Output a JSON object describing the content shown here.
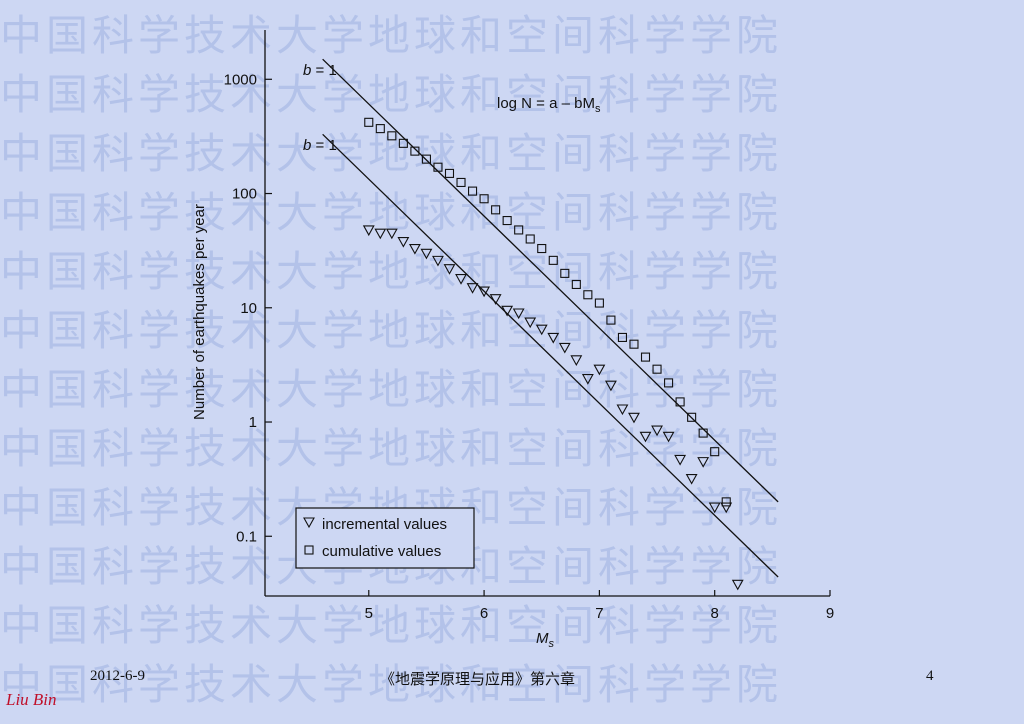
{
  "watermark": {
    "text": "中国科学技术大学地球和空间科学学院"
  },
  "chart_data": {
    "type": "scatter",
    "xlabel": "M",
    "xlabel_sub": "s",
    "ylabel": "Number of earthquakes per year",
    "xlim": [
      4.1,
      9.0
    ],
    "ylim": [
      0.03,
      2700
    ],
    "yscale": "log",
    "x_ticks": [
      5,
      6,
      7,
      8,
      9
    ],
    "x_tick_labels": [
      "5",
      "6",
      "7",
      "8",
      "9"
    ],
    "y_ticks": [
      0.1,
      1,
      10,
      100,
      1000
    ],
    "y_tick_labels": [
      "0.1",
      "1",
      "10",
      "100",
      "1000"
    ],
    "grid": false,
    "legend_position": "bottom-left",
    "series": [
      {
        "name": "incremental values",
        "marker": "triangle-down",
        "points": [
          [
            5.0,
            48
          ],
          [
            5.1,
            45
          ],
          [
            5.2,
            45
          ],
          [
            5.3,
            38
          ],
          [
            5.4,
            33
          ],
          [
            5.5,
            30
          ],
          [
            5.6,
            26
          ],
          [
            5.7,
            22
          ],
          [
            5.8,
            18
          ],
          [
            5.9,
            15
          ],
          [
            6.0,
            14
          ],
          [
            6.1,
            12
          ],
          [
            6.2,
            9.5
          ],
          [
            6.3,
            9.0
          ],
          [
            6.4,
            7.5
          ],
          [
            6.5,
            6.5
          ],
          [
            6.6,
            5.5
          ],
          [
            6.7,
            4.5
          ],
          [
            6.8,
            3.5
          ],
          [
            6.9,
            2.4
          ],
          [
            7.0,
            2.9
          ],
          [
            7.1,
            2.1
          ],
          [
            7.2,
            1.3
          ],
          [
            7.3,
            1.1
          ],
          [
            7.4,
            0.75
          ],
          [
            7.5,
            0.85
          ],
          [
            7.6,
            0.75
          ],
          [
            7.7,
            0.47
          ],
          [
            7.8,
            0.32
          ],
          [
            7.9,
            0.45
          ],
          [
            8.0,
            0.18
          ],
          [
            8.1,
            0.18
          ],
          [
            8.2,
            0.038
          ]
        ]
      },
      {
        "name": "cumulative values",
        "marker": "square",
        "points": [
          [
            5.0,
            420
          ],
          [
            5.1,
            370
          ],
          [
            5.2,
            320
          ],
          [
            5.3,
            275
          ],
          [
            5.4,
            235
          ],
          [
            5.5,
            200
          ],
          [
            5.6,
            170
          ],
          [
            5.7,
            150
          ],
          [
            5.8,
            125
          ],
          [
            5.9,
            105
          ],
          [
            6.0,
            90
          ],
          [
            6.1,
            72
          ],
          [
            6.2,
            58
          ],
          [
            6.3,
            48
          ],
          [
            6.4,
            40
          ],
          [
            6.5,
            33
          ],
          [
            6.6,
            26
          ],
          [
            6.7,
            20
          ],
          [
            6.8,
            16
          ],
          [
            6.9,
            13
          ],
          [
            7.0,
            11
          ],
          [
            7.1,
            7.8
          ],
          [
            7.2,
            5.5
          ],
          [
            7.3,
            4.8
          ],
          [
            7.4,
            3.7
          ],
          [
            7.5,
            2.9
          ],
          [
            7.6,
            2.2
          ],
          [
            7.7,
            1.5
          ],
          [
            7.8,
            1.1
          ],
          [
            7.9,
            0.8
          ],
          [
            8.0,
            0.55
          ],
          [
            8.1,
            0.2
          ]
        ]
      }
    ],
    "lines": [
      {
        "label": "b = 1",
        "x": [
          4.6,
          8.55
        ],
        "y": [
          1500,
          0.2
        ]
      },
      {
        "label": "b = 1",
        "x": [
          4.6,
          8.55
        ],
        "y": [
          330,
          0.044
        ]
      }
    ],
    "equation": "log N = a – bM",
    "equation_sub": "s"
  },
  "footer": {
    "date": "2012-6-9",
    "course": "《地震学原理与应用》第六章",
    "page": "4"
  },
  "signature": "Liu Bin"
}
